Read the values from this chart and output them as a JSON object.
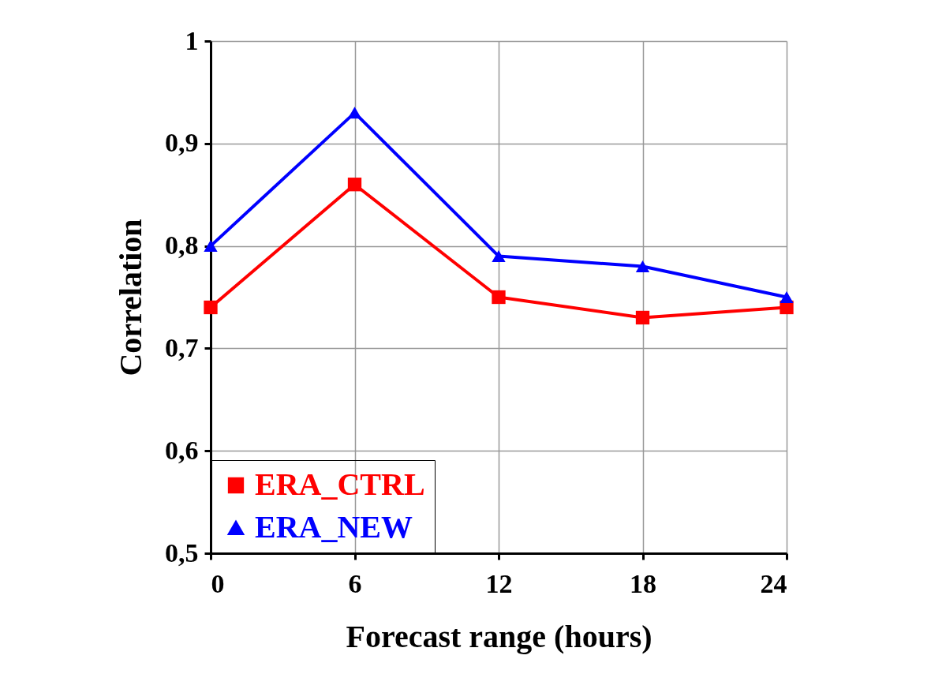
{
  "chart_data": {
    "type": "line",
    "xlabel": "Forecast range (hours)",
    "ylabel": "Correlation",
    "x": [
      0,
      6,
      12,
      18,
      24
    ],
    "series": [
      {
        "name": "ERA_CTRL",
        "color": "#ff0000",
        "marker": "square",
        "values": [
          0.74,
          0.86,
          0.75,
          0.73,
          0.74
        ]
      },
      {
        "name": "ERA_NEW",
        "color": "#0000ff",
        "marker": "triangle",
        "values": [
          0.8,
          0.93,
          0.79,
          0.78,
          0.75
        ]
      }
    ],
    "xlim": [
      0,
      24
    ],
    "xticks": [
      0,
      6,
      12,
      18,
      24
    ],
    "ylim": [
      0.5,
      1
    ],
    "yticks": [
      {
        "value": 0.5,
        "label": "0,5"
      },
      {
        "value": 0.6,
        "label": "0,6"
      },
      {
        "value": 0.7,
        "label": "0,7"
      },
      {
        "value": 0.8,
        "label": "0,8"
      },
      {
        "value": 0.9,
        "label": "0,9"
      },
      {
        "value": 1,
        "label": "1"
      }
    ],
    "grid": true,
    "legend": "bottom left",
    "line_style": "solid"
  }
}
